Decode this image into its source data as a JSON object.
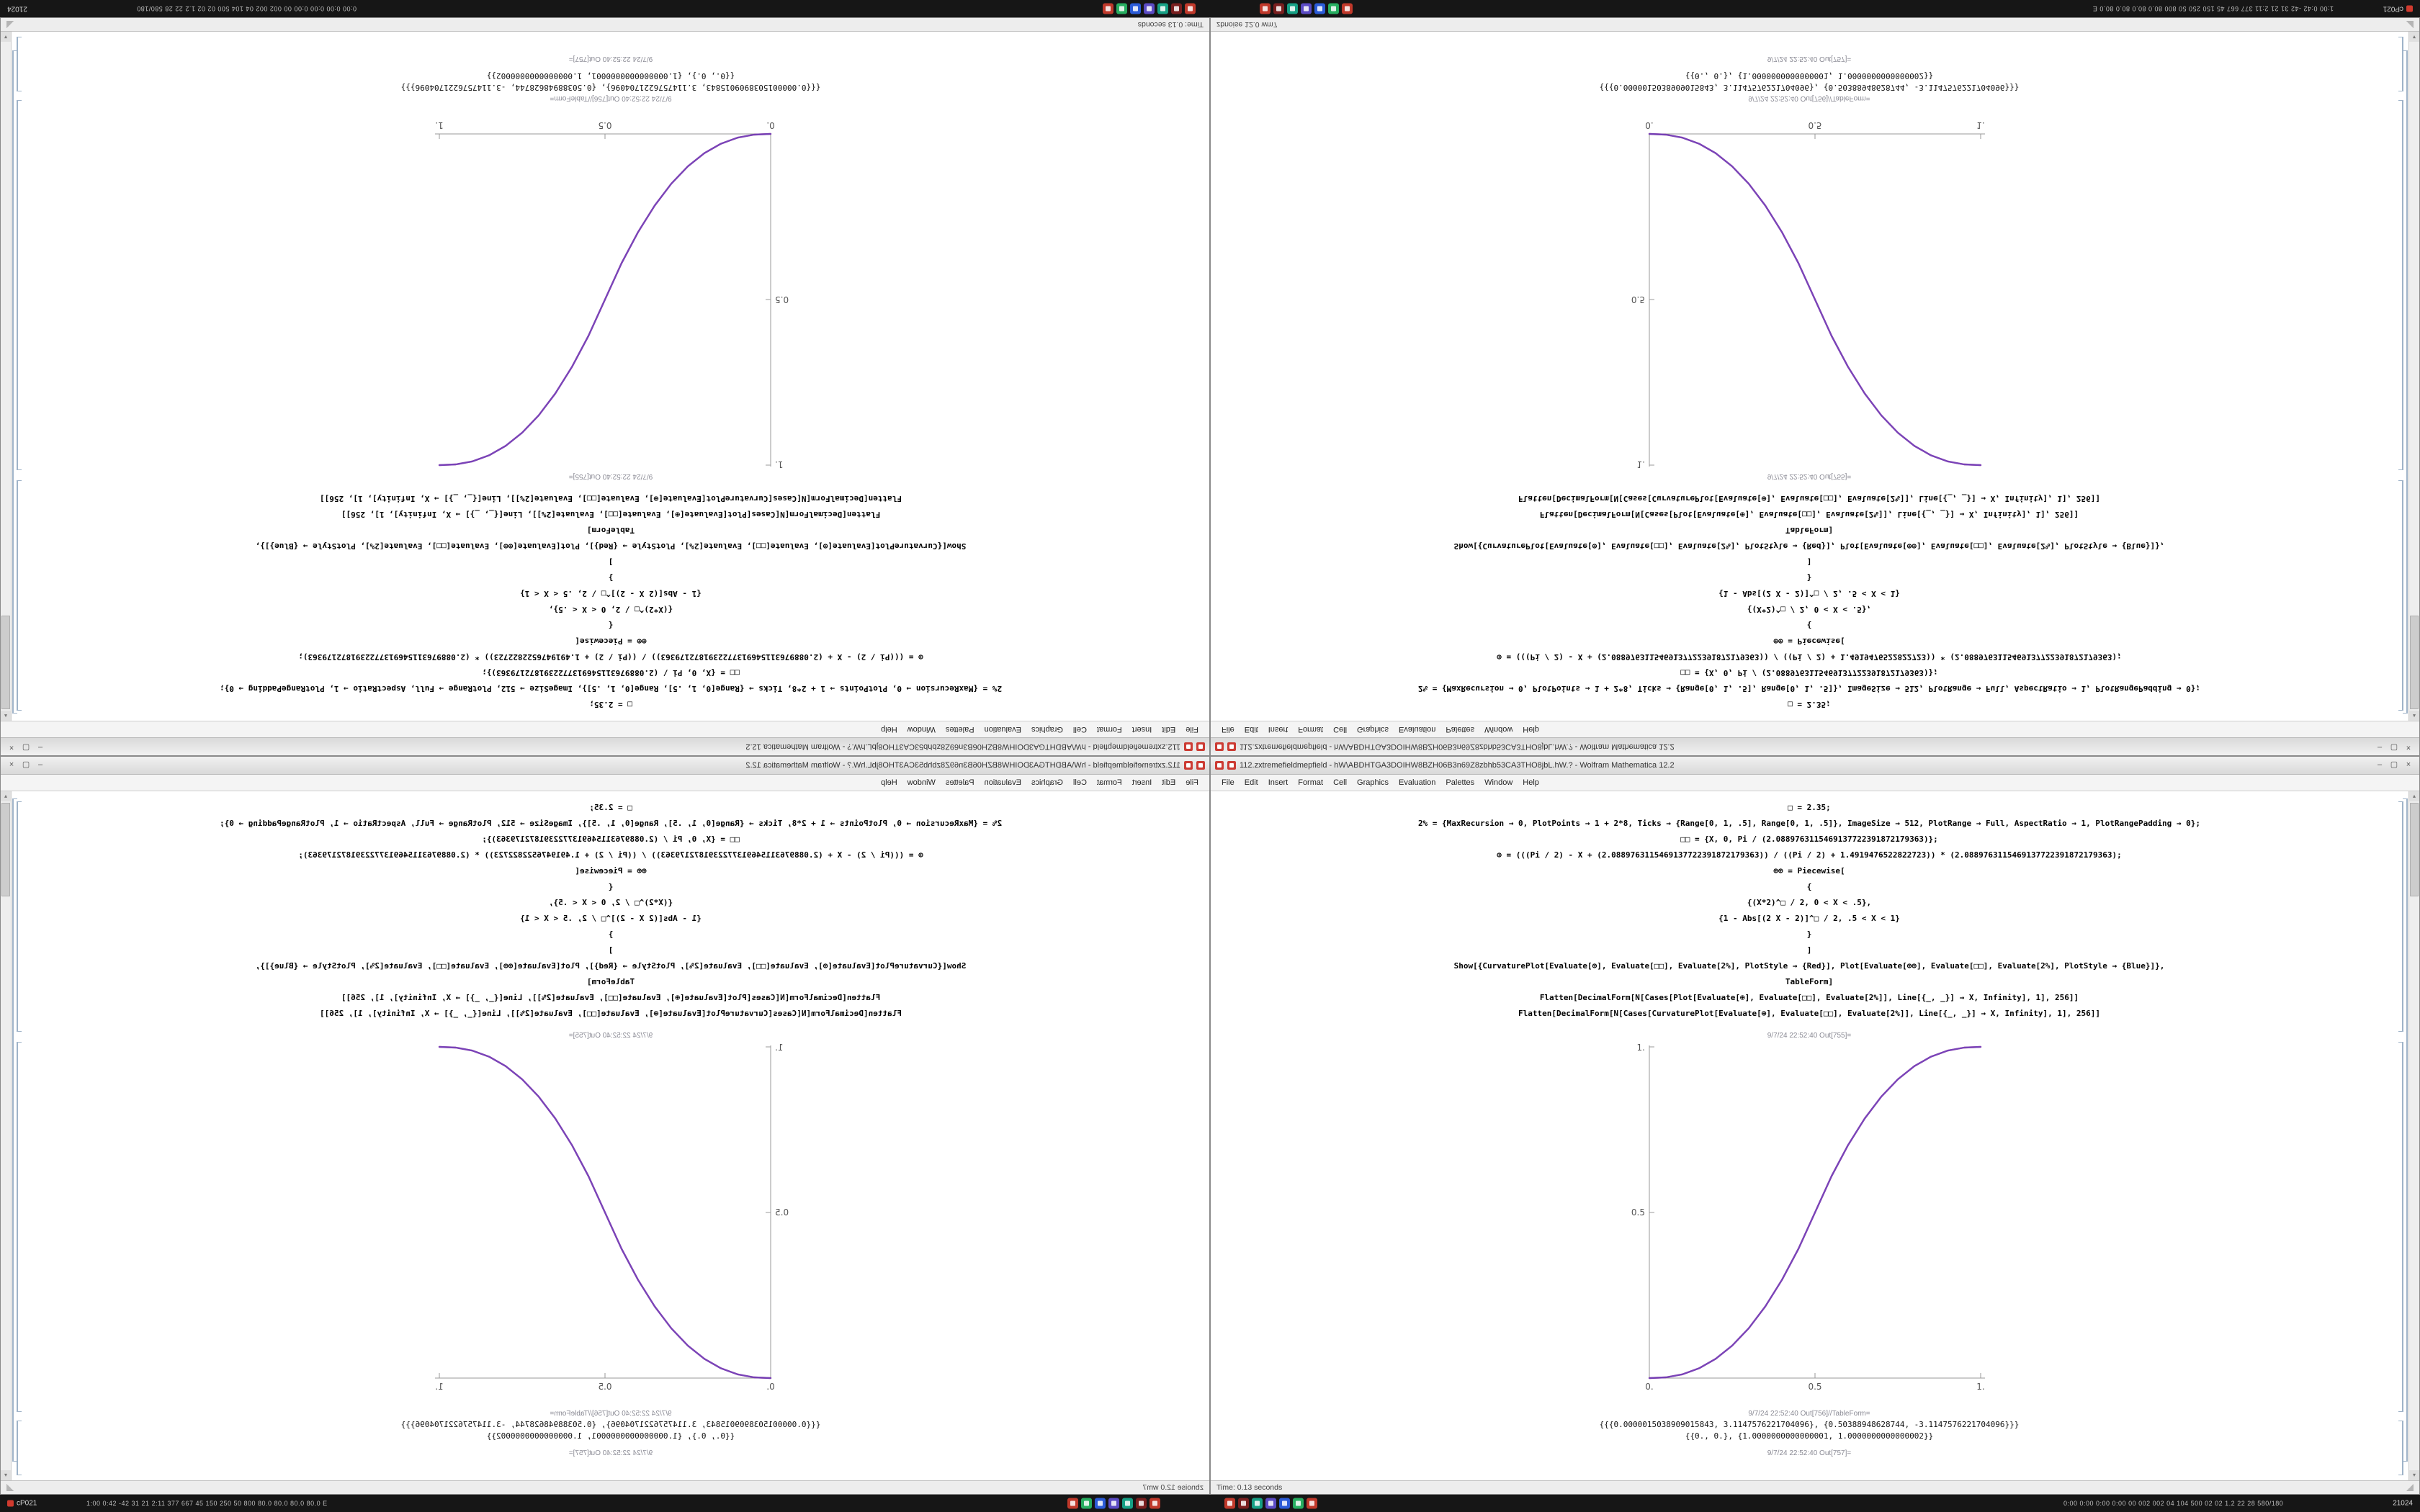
{
  "desktop": {
    "background": "#9a9a9a"
  },
  "taskbar": {
    "background": "#161616",
    "left_corner_label": "cP021",
    "left_stats": "1:00 0:42 -42 31 21 2:11 377 667 45 150 250 50 800 80.0 80.0 80.0 80.0 E",
    "right_stats": "0:00 0:00 0:00 0:00 00 002 002 04 104 500 02 02 1.2 22 28 580/180",
    "right_corner_label": "21024",
    "icons_left": [
      "#c0392b",
      "#27ae60",
      "#2b5bd7",
      "#5b4bc4",
      "#16a085",
      "#7a1f1f",
      "#c0392b"
    ],
    "icons_right": [
      "#c0392b",
      "#7a1f1f",
      "#16a085",
      "#5b4bc4",
      "#2b5bd7",
      "#27ae60",
      "#c0392b"
    ]
  },
  "windows": [
    {
      "quadrant": "top-left",
      "orientation": "rotated-180",
      "status_variant": "time"
    },
    {
      "quadrant": "top-right",
      "orientation": "mirrored-vertical",
      "status_variant": "zb"
    },
    {
      "quadrant": "bottom-left",
      "orientation": "mirrored-horizontal",
      "status_variant": "zb"
    },
    {
      "quadrant": "bottom-right",
      "orientation": "normal",
      "status_variant": "time"
    }
  ],
  "window": {
    "title": "112.zxtremefieldmepfield - hW\\ABDHTGA3DOIHW8BZH06B3n69Z8zbhb53CA3THO8jbL.hW.? - Wolfram Mathematica 12.2",
    "window_buttons": {
      "minimize": "–",
      "maximize": "▢",
      "close": "×"
    },
    "menu": [
      "File",
      "Edit",
      "Insert",
      "Format",
      "Cell",
      "Graphics",
      "Evaluation",
      "Palettes",
      "Window",
      "Help"
    ],
    "code_lines": [
      "□ = 2.35;",
      "2% = {MaxRecursion → 0, PlotPoints → 1 + 2*8, Ticks → {Range[0, 1, .5], Range[0, 1, .5]}, ImageSize → 512, PlotRange → Full, AspectRatio → 1, PlotRangePadding → 0};",
      "□□ = {X, 0, Pi / (2.0889763115469137722391872179363)};",
      "⊕ = (((Pi / 2) - X + (2.0889763115469137722391872179363)) / ((Pi / 2) + 1.4919476522822723)) * (2.0889763115469137722391872179363);",
      "⊕⊕ = Piecewise[",
      "{",
      "{(X*2)^□ / 2, 0 < X < .5},",
      "{1 - Abs[(2 X - 2)]^□ / 2, .5 < X < 1}",
      "}",
      "]",
      "Show[{CurvaturePlot[Evaluate[⊕], Evaluate[□□], Evaluate[2%], PlotStyle → {Red}], Plot[Evaluate[⊕⊕], Evaluate[□□], Evaluate[2%], PlotStyle → {Blue}]},",
      "TableForm]",
      "Flatten[DecimalForm[N[Cases[Plot[Evaluate[⊕], Evaluate[□□], Evaluate[2%]], Line[{_, _}] → X, Infinity], 1], 256]]",
      "Flatten[DecimalForm[N[Cases[CurvaturePlot[Evaluate[⊕], Evaluate[□□], Evaluate[2%]], Line[{_, _}] → X, Infinity], 1], 256]]"
    ],
    "out_label_plot": "9/7/24 22:52:40 Out[755]=",
    "out_label_table": "9/7/24 22:52:40 Out[756]//TableForm=",
    "out_label_last": "9/7/24 22:52:40 Out[757]=",
    "result_rows": [
      "{{{0.0000015038909015843, 3.1147576221704096}, {0.50388948628744, -3.1147576221704096}}}",
      "{{0., 0.}, {1.0000000000000001, 1.0000000000000002}}"
    ],
    "status": {
      "time": "Time: 0.13 seconds",
      "zb": "zbnoise 12.0 wm7"
    }
  },
  "chart_data": {
    "type": "line",
    "title": "",
    "xlabel": "",
    "ylabel": "",
    "xlim": [
      0,
      1
    ],
    "ylim": [
      0,
      1
    ],
    "xticks": [
      0,
      0.5,
      1
    ],
    "xtick_labels": [
      "0.",
      "0.5",
      "1."
    ],
    "yticks": [
      0.5,
      1
    ],
    "ytick_labels": [
      "0.5",
      "1."
    ],
    "grid": false,
    "legend": "none",
    "x": [
      0,
      0.05,
      0.1,
      0.15,
      0.2,
      0.25,
      0.3,
      0.35,
      0.4,
      0.45,
      0.5,
      0.55,
      0.6,
      0.65,
      0.7,
      0.75,
      0.8,
      0.85,
      0.9,
      0.95,
      1
    ],
    "series": [
      {
        "name": "curvature-plot-red",
        "color": "#e02050",
        "values": [
          0,
          0.0022,
          0.0114,
          0.0295,
          0.058,
          0.098,
          0.1505,
          0.2163,
          0.296,
          0.3903,
          0.5,
          0.6097,
          0.704,
          0.7837,
          0.8495,
          0.902,
          0.942,
          0.9705,
          0.9886,
          0.9978,
          1
        ]
      },
      {
        "name": "plot-blue",
        "color": "#4838d0",
        "values": [
          0,
          0.0022,
          0.0114,
          0.0295,
          0.058,
          0.098,
          0.1505,
          0.2163,
          0.296,
          0.3903,
          0.5,
          0.6097,
          0.704,
          0.7837,
          0.8495,
          0.902,
          0.942,
          0.9705,
          0.9886,
          0.9978,
          1
        ]
      }
    ]
  }
}
